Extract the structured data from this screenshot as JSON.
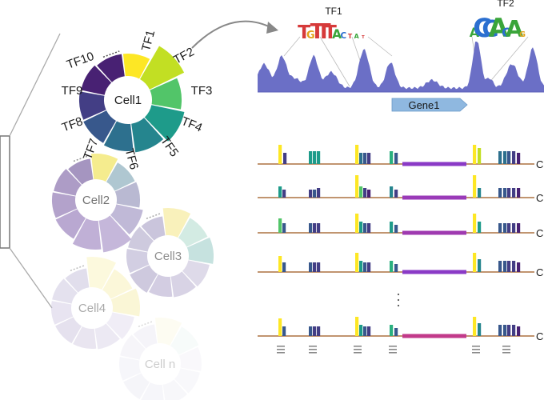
{
  "rings": [
    {
      "name": "Cell1",
      "opacity": 1.0,
      "labels": true
    },
    {
      "name": "Cell2",
      "opacity": 0.62,
      "labels": false
    },
    {
      "name": "Cell3",
      "opacity": 0.5,
      "labels": false
    },
    {
      "name": "Cell4",
      "opacity": 0.38,
      "labels": false
    },
    {
      "name": "Cell n",
      "opacity": 0.22,
      "labels": false
    }
  ],
  "tf_labels": [
    "TF1",
    "TF2",
    "TF3",
    "TF4",
    "TF5",
    "TF6",
    "TF7",
    "TF8",
    "TF9",
    "TF10"
  ],
  "motifs": [
    {
      "label": "TF1",
      "letters": "TGTTTACTAT"
    },
    {
      "label": "TF2",
      "letters": "ACCACAG"
    }
  ],
  "gene": {
    "label": "Gene1"
  },
  "rows": [
    {
      "label": "C"
    },
    {
      "label": "C"
    },
    {
      "label": "C"
    },
    {
      "label": "C"
    },
    {
      "label": "C"
    }
  ],
  "colors": {
    "viridis": [
      "#fde725",
      "#c2df23",
      "#86d549",
      "#52c569",
      "#2ab07f",
      "#1e9b8a",
      "#25858e",
      "#2d708e",
      "#38588c",
      "#433e85",
      "#482173"
    ],
    "track": "#6b6fc6",
    "gene_arrow": "#8fb8e0",
    "baseline": "#b8865b",
    "connector": "#999999"
  }
}
